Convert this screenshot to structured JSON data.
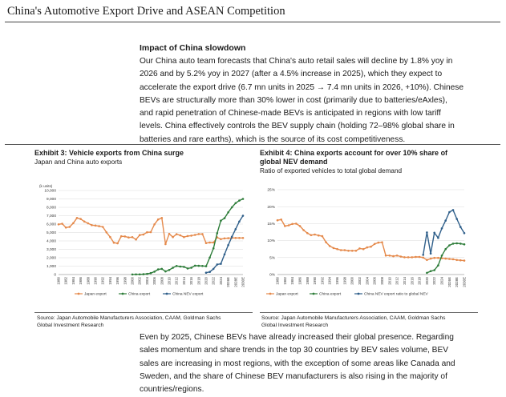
{
  "page_title": "China's Automotive Export Drive and ASEAN Competition",
  "section_heading": "Impact of China slowdown",
  "paragraph1_lines": [
    "Our China auto team forecasts that China's auto retail sales will decline by 1.8% yoy in",
    "2026 and by 5.2% yoy in 2027 (after a 4.5% increase in 2025), which they expect to",
    "accelerate the export drive (6.7 mn units in 2025 → 7.4 mn units in 2026, +10%). Chinese",
    "BEVs are structurally more than 30% lower in cost (primarily due to batteries/eAxles),",
    "and rapid penetration of Chinese-made BEVs is anticipated in regions with low tariff",
    "levels. China effectively controls the BEV supply chain (holding 72–98% global share in",
    "batteries and rare earths), which is the source of its cost competitiveness."
  ],
  "paragraph2_lines": [
    "Even by 2025, Chinese BEVs have already increased their global presence. Regarding",
    "sales momentum and share trends in the top 30 countries by BEV sales volume, BEV",
    "sales are increasing in most regions, with the exception of some areas like Canada and",
    "Sweden, and the share of Chinese BEV manufacturers is also rising in the majority of",
    "countries/regions."
  ],
  "exhibit3": {
    "title": "Exhibit 3: Vehicle exports from China surge",
    "subtitle": "Japan and China auto exports",
    "source_lines": [
      "Source: Japan Automobile Manufacturers Association, CAAM, Goldman Sachs",
      "Global Investment Research"
    ]
  },
  "exhibit4": {
    "title_lines": [
      "Exhibit 4: China exports account for over 10% share of",
      "global NEV demand"
    ],
    "subtitle": "Ratio of exported vehicles to total global demand",
    "source_lines": [
      "Source: Japan Automobile Manufacturers Association, CAAM, Goldman Sachs",
      "Global Investment Research"
    ]
  },
  "colors": {
    "japan": "#e58a4c",
    "china": "#2e7d3a",
    "china_nev": "#2f5f8a",
    "grid": "#d9d9d9",
    "axis": "#888888"
  },
  "chart_data": [
    {
      "type": "line",
      "title": "Japan and China auto exports",
      "unit_label": "(k units)",
      "ylim": [
        0,
        10000
      ],
      "y_ticks": [
        "0",
        "1,000",
        "2,000",
        "3,000",
        "4,000",
        "5,000",
        "6,000",
        "7,000",
        "8,000",
        "9,000",
        "10,000"
      ],
      "x_range": [
        1980,
        2030
      ],
      "x_ticks": [
        "1980",
        "1982",
        "1984",
        "1986",
        "1988",
        "1990",
        "1992",
        "1994",
        "1996",
        "1998",
        "2000",
        "2002",
        "2004",
        "2006",
        "2008",
        "2010",
        "2012",
        "2014",
        "2016",
        "2018",
        "2020",
        "2022",
        "2024",
        "2026E",
        "2028E",
        "2030E"
      ],
      "series": [
        {
          "name": "Japan export",
          "legend_label": "Japan export",
          "color_key": "japan",
          "x": [
            1980,
            1981,
            1982,
            1983,
            1984,
            1985,
            1986,
            1987,
            1988,
            1989,
            1990,
            1991,
            1992,
            1993,
            1994,
            1995,
            1996,
            1997,
            1998,
            1999,
            2000,
            2001,
            2002,
            2003,
            2004,
            2005,
            2006,
            2007,
            2008,
            2009,
            2010,
            2011,
            2012,
            2013,
            2014,
            2015,
            2016,
            2017,
            2018,
            2019,
            2020,
            2021,
            2022,
            2023,
            2024,
            2025,
            2026,
            2027,
            2028,
            2029,
            2030
          ],
          "y": [
            5967,
            6050,
            5590,
            5670,
            6110,
            6730,
            6610,
            6300,
            6100,
            5880,
            5830,
            5750,
            5670,
            5020,
            4460,
            3790,
            3710,
            4550,
            4530,
            4410,
            4450,
            4170,
            4700,
            4760,
            5030,
            5050,
            5970,
            6550,
            6730,
            3620,
            4840,
            4460,
            4800,
            4670,
            4460,
            4580,
            4630,
            4710,
            4820,
            4820,
            3740,
            3810,
            3810,
            4420,
            4210,
            4300,
            4320,
            4350,
            4350,
            4350,
            4350
          ]
        },
        {
          "name": "China export",
          "legend_label": "China export",
          "color_key": "china",
          "x": [
            2000,
            2001,
            2002,
            2003,
            2004,
            2005,
            2006,
            2007,
            2008,
            2009,
            2010,
            2011,
            2012,
            2013,
            2014,
            2015,
            2016,
            2017,
            2018,
            2019,
            2020,
            2021,
            2022,
            2023,
            2024,
            2025,
            2026,
            2027,
            2028,
            2029,
            2030
          ],
          "y": [
            10,
            20,
            20,
            40,
            80,
            170,
            340,
            610,
            680,
            370,
            540,
            810,
            1020,
            950,
            910,
            720,
            810,
            1060,
            1040,
            1020,
            990,
            2020,
            3110,
            4910,
            6410,
            6700,
            7400,
            8000,
            8500,
            8800,
            9000
          ]
        },
        {
          "name": "China NEV export",
          "legend_label": "China NEV export",
          "color_key": "china_nev",
          "x": [
            2020,
            2021,
            2022,
            2023,
            2024,
            2025,
            2026,
            2027,
            2028,
            2029,
            2030
          ],
          "y": [
            220,
            310,
            680,
            1200,
            1280,
            2400,
            3500,
            4500,
            5400,
            6300,
            7000
          ]
        }
      ]
    },
    {
      "type": "line",
      "title": "Ratio of exported vehicles to total global demand",
      "ylim": [
        0,
        25
      ],
      "y_ticks": [
        "0%",
        "5%",
        "10%",
        "15%",
        "20%",
        "25%"
      ],
      "x_range": [
        1980,
        2030
      ],
      "x_ticks": [
        "1980",
        "1982",
        "1984",
        "1986",
        "1988",
        "1990",
        "1992",
        "1994",
        "1996",
        "1998",
        "2000",
        "2002",
        "2004",
        "2006",
        "2008",
        "2010",
        "2012",
        "2014",
        "2016",
        "2018",
        "2020",
        "2022",
        "2024",
        "2026E",
        "2028E",
        "2030E"
      ],
      "series": [
        {
          "name": "Japan export",
          "legend_label": "Japan export",
          "color_key": "japan",
          "x": [
            1980,
            1981,
            1982,
            1983,
            1984,
            1985,
            1986,
            1987,
            1988,
            1989,
            1990,
            1991,
            1992,
            1993,
            1994,
            1995,
            1996,
            1997,
            1998,
            1999,
            2000,
            2001,
            2002,
            2003,
            2004,
            2005,
            2006,
            2007,
            2008,
            2009,
            2010,
            2011,
            2012,
            2013,
            2014,
            2015,
            2016,
            2017,
            2018,
            2019,
            2020,
            2021,
            2022,
            2023,
            2024,
            2025,
            2026,
            2027,
            2028,
            2029,
            2030
          ],
          "y": [
            16.0,
            16.2,
            14.3,
            14.5,
            14.9,
            15.0,
            14.3,
            13.1,
            12.2,
            11.6,
            11.8,
            11.5,
            11.3,
            9.5,
            8.4,
            7.8,
            7.5,
            7.2,
            7.2,
            7.0,
            7.0,
            7.0,
            7.7,
            7.5,
            8.0,
            8.2,
            9.0,
            9.4,
            9.5,
            5.6,
            5.6,
            5.4,
            5.6,
            5.3,
            5.1,
            5.1,
            5.1,
            5.2,
            5.2,
            5.0,
            4.3,
            4.7,
            4.9,
            4.9,
            4.8,
            4.7,
            4.6,
            4.5,
            4.3,
            4.2,
            4.1
          ]
        },
        {
          "name": "China export",
          "legend_label": "China export",
          "color_key": "china",
          "x": [
            2020,
            2021,
            2022,
            2023,
            2024,
            2025,
            2026,
            2027,
            2028,
            2029,
            2030
          ],
          "y": [
            0.5,
            1.0,
            1.3,
            2.7,
            5.6,
            7.5,
            8.6,
            9.1,
            9.2,
            9.1,
            8.9
          ]
        },
        {
          "name": "China NEV export ratio to global NEV",
          "legend_label": "China NEV export ratio to global NEV",
          "color_key": "china_nev",
          "x": [
            2019,
            2020,
            2021,
            2022,
            2023,
            2024,
            2025,
            2026,
            2027,
            2028,
            2029,
            2030
          ],
          "y": [
            5.8,
            12.4,
            6.2,
            12.3,
            10.8,
            13.6,
            15.9,
            18.4,
            19.0,
            16.4,
            14.0,
            12.2
          ]
        }
      ]
    }
  ]
}
